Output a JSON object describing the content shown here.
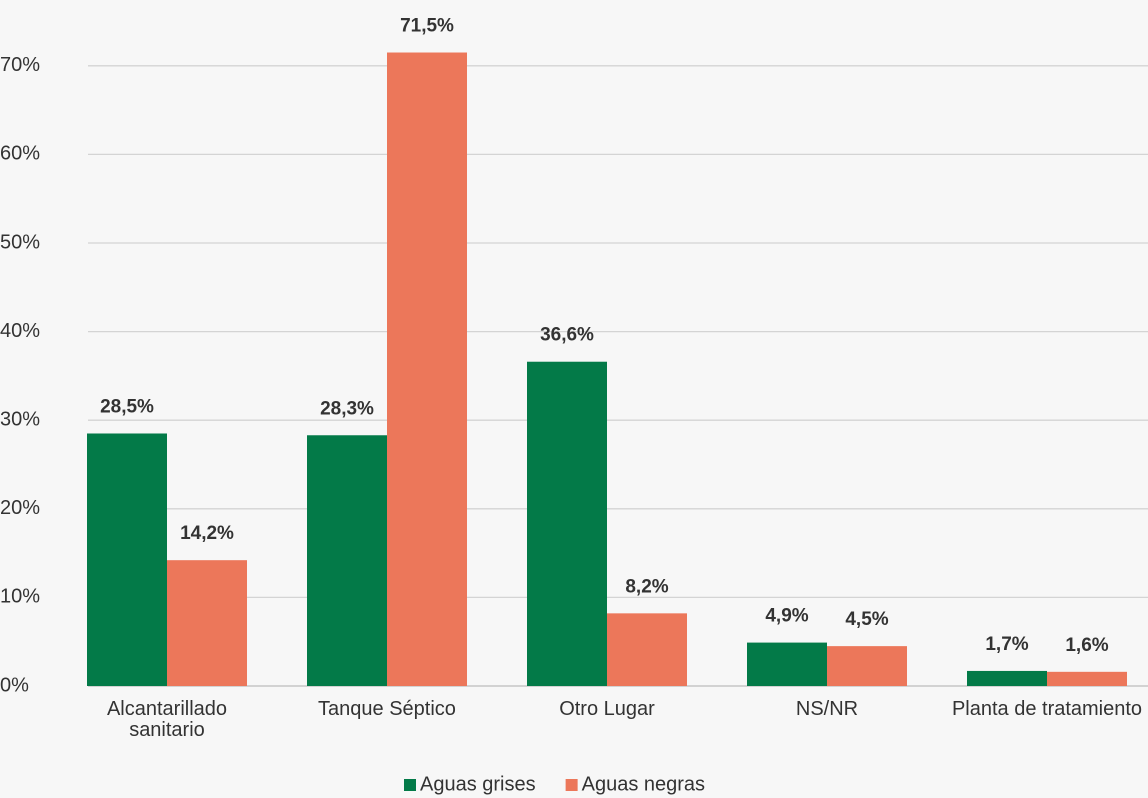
{
  "chart_data": {
    "type": "bar",
    "categories": [
      "Alcantarillado sanitario",
      "Tanque Séptico",
      "Otro Lugar",
      "NS/NR",
      "Planta de tratamiento"
    ],
    "series": [
      {
        "name": "Aguas grises",
        "color": "#037a48",
        "values": [
          28.5,
          28.3,
          36.6,
          4.9,
          1.7
        ],
        "value_labels": [
          "28,5%",
          "28,3%",
          "36,6%",
          "4,9%",
          "1,7%"
        ]
      },
      {
        "name": "Aguas negras",
        "color": "#ec775a",
        "values": [
          14.2,
          71.5,
          8.2,
          4.5,
          1.6
        ],
        "value_labels": [
          "14,2%",
          "71,5%",
          "8,2%",
          "4,5%",
          "1,6%"
        ]
      }
    ],
    "ylim": [
      0,
      75
    ],
    "yticks": [
      {
        "value": 0,
        "label": "0%"
      },
      {
        "value": 10,
        "label": "10%"
      },
      {
        "value": 20,
        "label": "20%"
      },
      {
        "value": 30,
        "label": "30%"
      },
      {
        "value": 40,
        "label": "40%"
      },
      {
        "value": 50,
        "label": "50%"
      },
      {
        "value": 60,
        "label": "60%"
      },
      {
        "value": 70,
        "label": "70%"
      }
    ],
    "grid": true,
    "legend": "bottom"
  }
}
